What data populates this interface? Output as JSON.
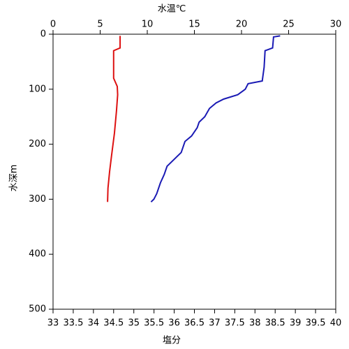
{
  "chart_data": {
    "type": "line",
    "xlabel": "水温℃",
    "x2label": "塩分",
    "ylabel": "水深m",
    "xlabel_color": "#1a3fc4",
    "x2label_color": "#cc1111",
    "xlim": [
      0,
      30
    ],
    "xticks": [
      0,
      5,
      10,
      15,
      20,
      25,
      30
    ],
    "x2lim": [
      33,
      40
    ],
    "x2ticks": [
      33,
      33.5,
      34,
      34.5,
      35,
      35.5,
      36,
      36.5,
      37,
      37.5,
      38,
      38.5,
      39,
      39.5,
      40
    ],
    "ylim": [
      0,
      500
    ],
    "yticks": [
      0,
      100,
      200,
      300,
      400,
      500
    ],
    "y_inverted": true,
    "series": [
      {
        "color": "#1a1ab4",
        "axis": "x",
        "x": [
          24.1,
          23.4,
          23.3,
          22.5,
          22.4,
          22.2,
          20.7,
          20.4,
          19.6,
          18.1,
          17.3,
          16.6,
          16.1,
          15.5,
          15.3,
          14.7,
          14.0,
          13.6,
          13.0,
          12.1,
          11.8,
          11.4,
          11.0,
          10.7,
          10.4
        ],
        "y": [
          3,
          5,
          25,
          30,
          60,
          85,
          90,
          100,
          110,
          118,
          125,
          135,
          150,
          160,
          170,
          185,
          195,
          215,
          225,
          240,
          255,
          270,
          290,
          300,
          305
        ]
      },
      {
        "color": "#dd1111",
        "axis": "x2",
        "x": [
          34.66,
          34.66,
          34.5,
          34.5,
          34.59,
          34.6,
          34.57,
          34.52,
          34.45,
          34.4,
          34.36,
          34.35
        ],
        "y": [
          3,
          25,
          30,
          80,
          95,
          110,
          140,
          180,
          220,
          250,
          280,
          305
        ]
      }
    ]
  }
}
